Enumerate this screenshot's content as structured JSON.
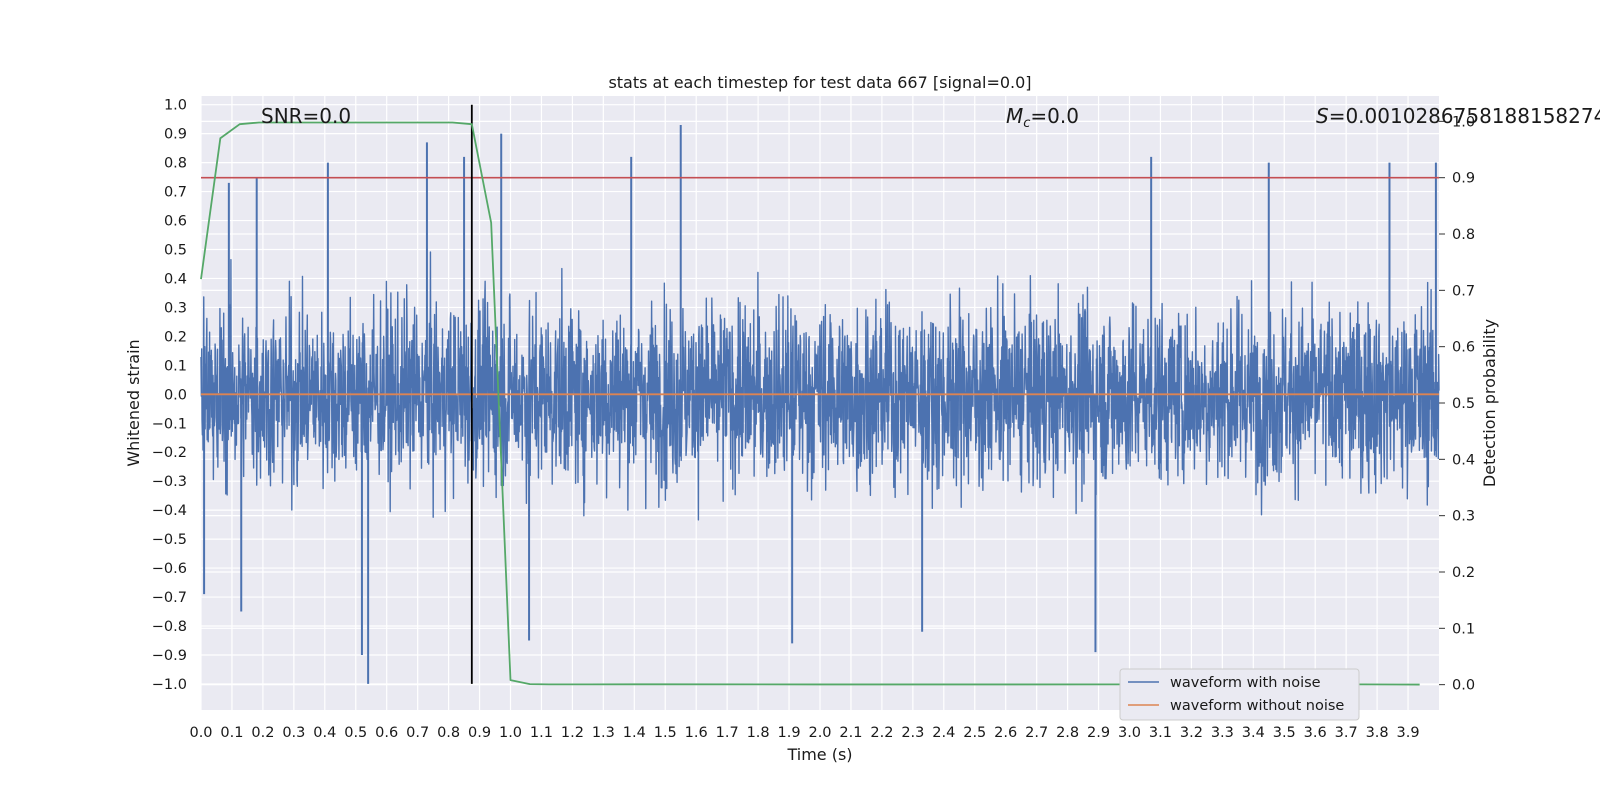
{
  "chart_data": {
    "type": "line",
    "title": "stats at each timestep for test data 667 [signal=0.0]",
    "xlabel": "Time (s)",
    "ylabel": "Whitened strain",
    "y2label": "Detection probability",
    "xlim": [
      0.0,
      4.0
    ],
    "ylim": [
      -1.09,
      1.03
    ],
    "y2lim": [
      -0.045,
      1.045
    ],
    "x_ticks": [
      "0.0",
      "0.1",
      "0.2",
      "0.3",
      "0.4",
      "0.5",
      "0.6",
      "0.7",
      "0.8",
      "0.9",
      "1.0",
      "1.1",
      "1.2",
      "1.3",
      "1.4",
      "1.5",
      "1.6",
      "1.7",
      "1.8",
      "1.9",
      "2.0",
      "2.1",
      "2.2",
      "2.3",
      "2.4",
      "2.5",
      "2.6",
      "2.7",
      "2.8",
      "2.9",
      "3.0",
      "3.1",
      "3.2",
      "3.3",
      "3.4",
      "3.5",
      "3.6",
      "3.7",
      "3.8",
      "3.9"
    ],
    "y_ticks": [
      "1.0",
      "0.9",
      "0.8",
      "0.7",
      "0.6",
      "0.5",
      "0.4",
      "0.3",
      "0.2",
      "0.1",
      "0.0",
      "-0.1",
      "-0.2",
      "-0.3",
      "-0.4",
      "-0.5",
      "-0.6",
      "-0.7",
      "-0.8",
      "-0.9",
      "-1.0"
    ],
    "y2_ticks": [
      "1.0",
      "0.9",
      "0.8",
      "0.7",
      "0.6",
      "0.5",
      "0.4",
      "0.3",
      "0.2",
      "0.1",
      "0.0"
    ],
    "annotations": {
      "snr": "SNR=0.0",
      "mc_symbol": "M",
      "mc_sub": "c",
      "mc_value": "=0.0",
      "s_symbol": "S",
      "s_value": "=0.0010286758188158274"
    },
    "threshold": {
      "axis": "right",
      "value": 0.9,
      "color": "#c44e52"
    },
    "marker_line": {
      "x": 0.875,
      "color": "#000000"
    },
    "noisy_waveform": {
      "name": "waveform with noise",
      "color": "#4c72b0",
      "amplitude_envelope": [
        -1.0,
        0.93
      ],
      "peaks": [
        {
          "x": 0.01,
          "y": -0.69
        },
        {
          "x": 0.09,
          "y": 0.73
        },
        {
          "x": 0.13,
          "y": -0.75
        },
        {
          "x": 0.18,
          "y": 0.75
        },
        {
          "x": 0.41,
          "y": 0.8
        },
        {
          "x": 0.52,
          "y": -0.9
        },
        {
          "x": 0.54,
          "y": -1.0
        },
        {
          "x": 0.73,
          "y": 0.87
        },
        {
          "x": 0.85,
          "y": 0.82
        },
        {
          "x": 0.97,
          "y": 0.9
        },
        {
          "x": 1.06,
          "y": -0.85
        },
        {
          "x": 1.39,
          "y": 0.82
        },
        {
          "x": 1.55,
          "y": 0.93
        },
        {
          "x": 1.91,
          "y": -0.86
        },
        {
          "x": 2.33,
          "y": -0.82
        },
        {
          "x": 2.89,
          "y": -0.89
        },
        {
          "x": 3.07,
          "y": 0.82
        },
        {
          "x": 3.45,
          "y": 0.8
        },
        {
          "x": 3.84,
          "y": 0.8
        },
        {
          "x": 3.99,
          "y": 0.8
        }
      ]
    },
    "clean_waveform": {
      "name": "waveform without noise",
      "color": "#dd8452",
      "x": [
        0.0,
        4.0
      ],
      "y": [
        0.0,
        0.0
      ]
    },
    "detection_probability": {
      "color": "#55a868",
      "x": [
        0.0,
        0.0625,
        0.125,
        0.1875,
        0.25,
        0.3125,
        0.375,
        0.4375,
        0.5,
        0.5625,
        0.625,
        0.6875,
        0.75,
        0.8125,
        0.875,
        0.9375,
        1.0,
        1.0625,
        1.125,
        1.1875,
        1.25,
        1.5,
        2.0,
        2.5,
        3.0,
        3.5,
        3.75,
        3.9375
      ],
      "y": [
        0.72,
        0.97,
        0.995,
        0.998,
        0.998,
        0.998,
        0.998,
        0.998,
        0.998,
        0.998,
        0.998,
        0.998,
        0.998,
        0.998,
        0.995,
        0.82,
        0.008,
        0.001,
        0.0005,
        0.0005,
        0.0005,
        0.0006,
        0.0004,
        0.0004,
        0.0005,
        0.0006,
        0.0005,
        0.0002
      ]
    },
    "legend": {
      "placement": "lower-right",
      "entries": [
        {
          "label": "waveform with noise",
          "color": "#4c72b0"
        },
        {
          "label": "waveform without noise",
          "color": "#dd8452"
        }
      ]
    },
    "grid": true
  }
}
